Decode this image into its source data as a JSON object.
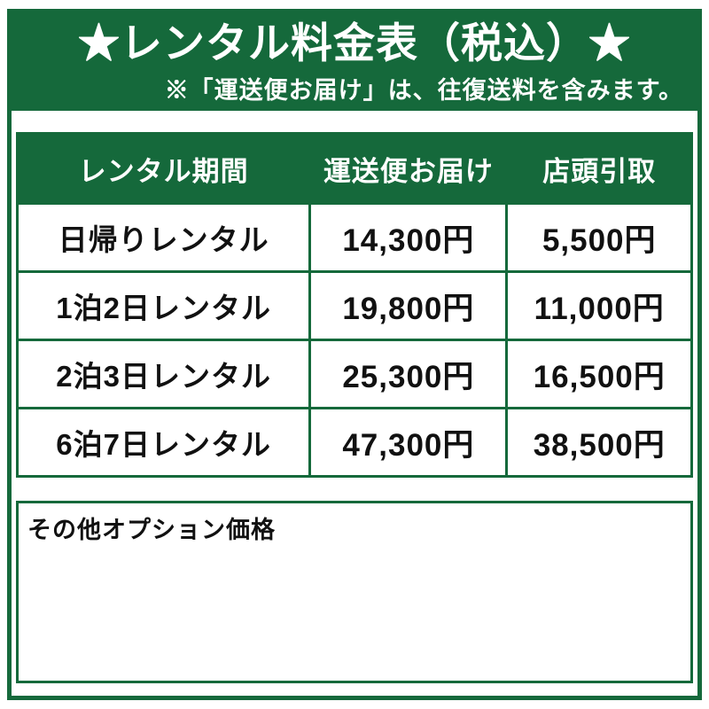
{
  "banner": {
    "title": "★レンタル料金表（税込）★",
    "subtitle": "※「運送便お届け」は、往復送料を含みます。"
  },
  "table": {
    "columns": [
      "レンタル期間",
      "運送便お届け",
      "店頭引取"
    ],
    "rows": [
      {
        "period": "日帰りレンタル",
        "delivery": "14,300円",
        "pickup": "5,500円"
      },
      {
        "period": "1泊2日レンタル",
        "delivery": "19,800円",
        "pickup": "11,000円"
      },
      {
        "period": "2泊3日レンタル",
        "delivery": "25,300円",
        "pickup": "16,500円"
      },
      {
        "period": "6泊7日レンタル",
        "delivery": "47,300円",
        "pickup": "38,500円"
      }
    ]
  },
  "options_section": {
    "title": "その他オプション価格"
  },
  "colors": {
    "brand_green": "#15693b",
    "text_black": "#111111",
    "background_white": "#ffffff"
  }
}
